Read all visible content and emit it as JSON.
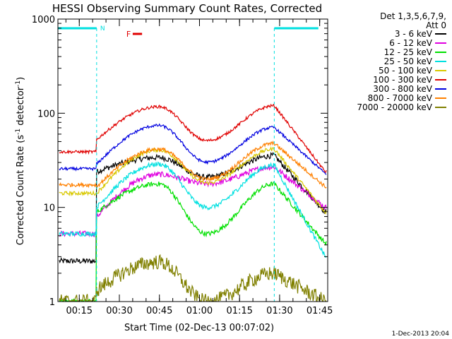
{
  "chart_data": {
    "type": "line",
    "title": "HESSI Observing Summary Count Rates, Corrected",
    "xlabel": "Start Time (02-Dec-13 00:07:02)",
    "ylabel_main": "Corrected Count Rate (s",
    "ylabel_sup1": "-1",
    "ylabel_mid": " detector",
    "ylabel_sup2": "-1",
    "ylabel_end": ")",
    "yscale": "log",
    "ylim": [
      1,
      1000
    ],
    "xlim": [
      7,
      108
    ],
    "y_ticks": [
      {
        "value": 1,
        "label": "1"
      },
      {
        "value": 10,
        "label": "10"
      },
      {
        "value": 100,
        "label": "100"
      },
      {
        "value": 1000,
        "label": "1000"
      }
    ],
    "x_ticks": [
      {
        "value": 15,
        "label": "00:15"
      },
      {
        "value": 30,
        "label": "00:30"
      },
      {
        "value": 45,
        "label": "00:45"
      },
      {
        "value": 60,
        "label": "01:00"
      },
      {
        "value": 75,
        "label": "01:15"
      },
      {
        "value": 90,
        "label": "01:30"
      },
      {
        "value": 105,
        "label": "01:45"
      }
    ],
    "legend_header": [
      "Det 1,3,5,6,7,9,",
      "Att 0"
    ],
    "legend_position": "right",
    "timestamp": "1-Dec-2013 20:04",
    "annotations": {
      "night_label": "N",
      "flare_label": "F"
    },
    "flag_colors": {
      "night": "#00e0e0",
      "flare": "#e00000"
    },
    "night_intervals": [
      [
        7,
        21.5
      ],
      [
        88,
        104.5
      ]
    ],
    "flare_interval": [
      35,
      38.5
    ],
    "series": [
      {
        "name": "3 - 6 keV",
        "color": "#000000",
        "shape": "bump2",
        "base": 1.38,
        "peak1": 1.53,
        "valley": 1.32,
        "peak2": 1.55,
        "pre": 0.43,
        "post": 0.95,
        "noise": 0.03
      },
      {
        "name": "6 - 12 keV",
        "color": "#e000e0",
        "shape": "bump2",
        "base": 0.9,
        "peak1": 1.35,
        "valley": 1.25,
        "peak2": 1.43,
        "pre": 0.72,
        "post": 1.0,
        "noise": 0.03
      },
      {
        "name": "12 - 25 keV",
        "color": "#00e000",
        "shape": "bump2",
        "base": 0.95,
        "peak1": 1.25,
        "valley": 0.72,
        "peak2": 1.25,
        "pre": 0.0,
        "post": 0.62,
        "noise": 0.025
      },
      {
        "name": "25 - 50 keV",
        "color": "#00e0e0",
        "shape": "bump2",
        "base": 1.0,
        "peak1": 1.46,
        "valley": 1.0,
        "peak2": 1.45,
        "pre": 0.72,
        "post": 0.48,
        "noise": 0.025
      },
      {
        "name": "50 - 100 keV",
        "color": "#d8c800",
        "shape": "bump2",
        "base": 1.15,
        "peak1": 1.61,
        "valley": 1.26,
        "peak2": 1.62,
        "pre": 1.15,
        "post": 0.95,
        "noise": 0.02
      },
      {
        "name": "100 - 300 keV",
        "color": "#e00000",
        "shape": "bump2",
        "base": 1.72,
        "peak1": 2.07,
        "valley": 1.71,
        "peak2": 2.08,
        "pre": 1.59,
        "post": 1.38,
        "noise": 0.015
      },
      {
        "name": "300 - 800 keV",
        "color": "#0000e0",
        "shape": "bump2",
        "base": 1.46,
        "peak1": 1.87,
        "valley": 1.48,
        "peak2": 1.85,
        "pre": 1.41,
        "post": 1.36,
        "noise": 0.015
      },
      {
        "name": "800 - 7000 keV",
        "color": "#ff8000",
        "shape": "bump2",
        "base": 1.22,
        "peak1": 1.62,
        "valley": 1.3,
        "peak2": 1.68,
        "pre": 1.24,
        "post": 1.22,
        "noise": 0.02
      },
      {
        "name": "7000 - 20000 keV",
        "color": "#808000",
        "shape": "bump2",
        "base": 0.12,
        "peak1": 0.42,
        "valley": 0.0,
        "peak2": 0.3,
        "pre": 0.0,
        "post": 0.0,
        "noise": 0.08
      }
    ]
  }
}
